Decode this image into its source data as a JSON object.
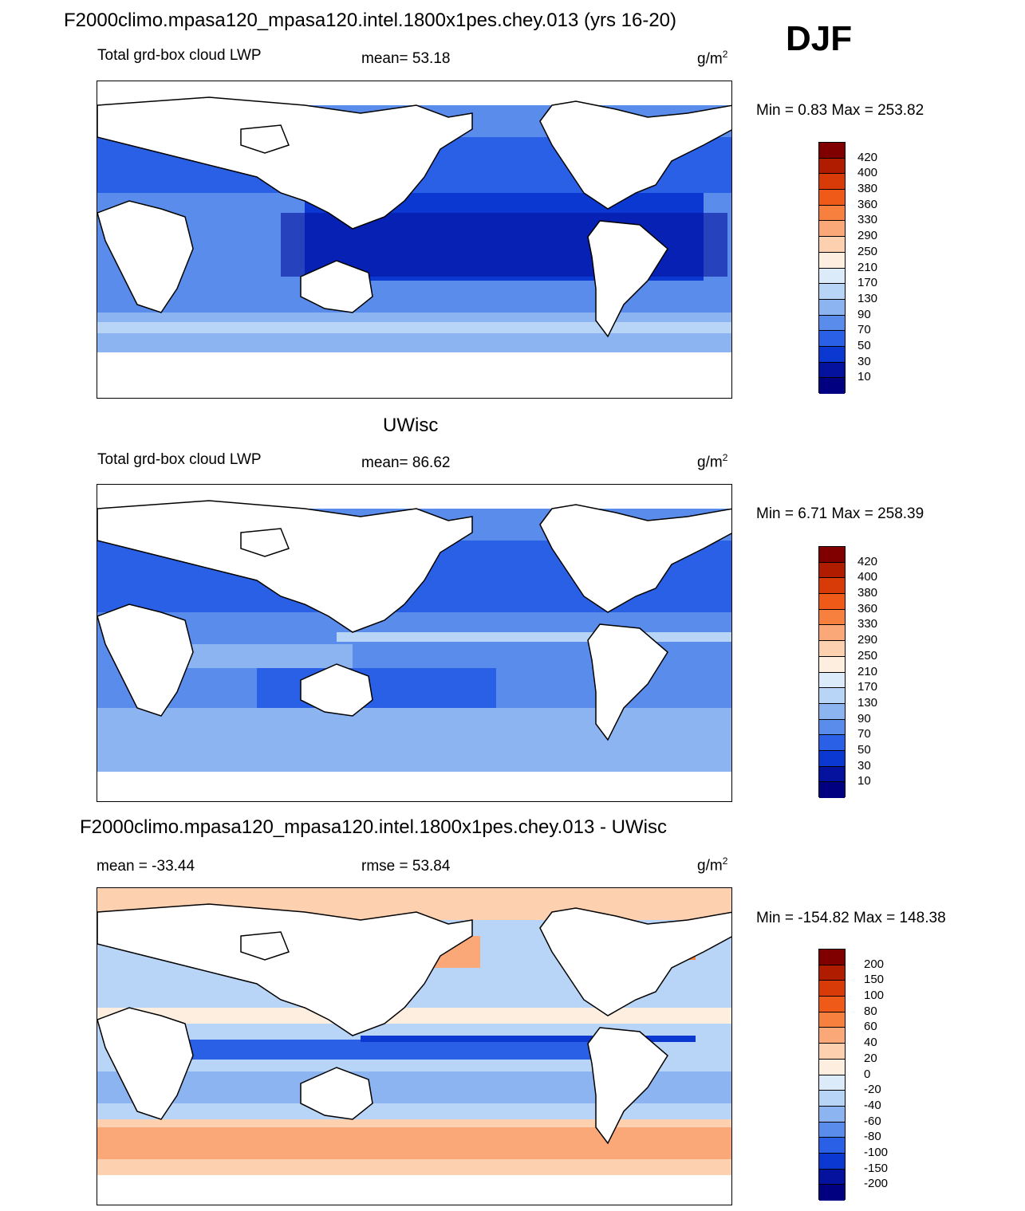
{
  "season": "DJF",
  "panels": [
    {
      "title": "F2000climo.mpasa120_mpasa120.intel.1800x1pes.chey.013 (yrs 16-20)",
      "left_label": "Total grd-box cloud LWP",
      "center_label": "mean=  53.18",
      "unit_base": "g/m",
      "unit_exp": "2",
      "minmax": "Min =   0.83 Max = 253.82",
      "colorbar": {
        "labels": [
          "420",
          "400",
          "380",
          "360",
          "330",
          "290",
          "250",
          "210",
          "170",
          "130",
          "90",
          "70",
          "50",
          "30",
          "10"
        ],
        "colors": [
          "#800000",
          "#b01c00",
          "#d83a08",
          "#f05a18",
          "#f8803e",
          "#fba878",
          "#fdd0b0",
          "#fdeee0",
          "#dcebfa",
          "#b8d4f6",
          "#8cb4f0",
          "#5a8cec",
          "#2a60e6",
          "#0c38d2",
          "#04129e",
          "#000080"
        ]
      }
    },
    {
      "title": "UWisc",
      "left_label": "Total grd-box cloud LWP",
      "center_label": "mean=  86.62",
      "unit_base": "g/m",
      "unit_exp": "2",
      "minmax": "Min =   6.71 Max = 258.39",
      "colorbar": {
        "labels": [
          "420",
          "400",
          "380",
          "360",
          "330",
          "290",
          "250",
          "210",
          "170",
          "130",
          "90",
          "70",
          "50",
          "30",
          "10"
        ],
        "colors": [
          "#800000",
          "#b01c00",
          "#d83a08",
          "#f05a18",
          "#f8803e",
          "#fba878",
          "#fdd0b0",
          "#fdeee0",
          "#dcebfa",
          "#b8d4f6",
          "#8cb4f0",
          "#5a8cec",
          "#2a60e6",
          "#0c38d2",
          "#04129e",
          "#000080"
        ]
      }
    },
    {
      "title": "F2000climo.mpasa120_mpasa120.intel.1800x1pes.chey.013 - UWisc",
      "left_label": "mean = -33.44",
      "center_label": "rmse =  53.84",
      "unit_base": "g/m",
      "unit_exp": "2",
      "minmax": "Min = -154.82 Max = 148.38",
      "colorbar": {
        "labels": [
          "200",
          "150",
          "100",
          "80",
          "60",
          "40",
          "20",
          "0",
          "-20",
          "-40",
          "-60",
          "-80",
          "-100",
          "-150",
          "-200"
        ],
        "colors": [
          "#800000",
          "#b01c00",
          "#d83a08",
          "#f05a18",
          "#f8803e",
          "#fba878",
          "#fdd0b0",
          "#fdeee0",
          "#dcebfa",
          "#b8d4f6",
          "#8cb4f0",
          "#5a8cec",
          "#2a60e6",
          "#0c38d2",
          "#04129e",
          "#000080"
        ]
      }
    }
  ]
}
